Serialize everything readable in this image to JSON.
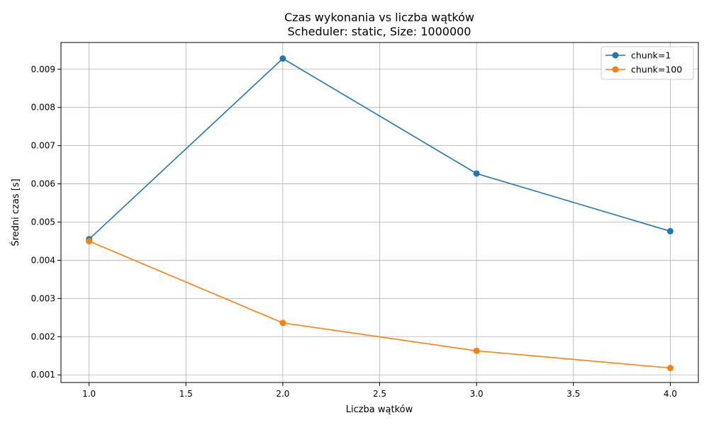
{
  "chart_data": {
    "type": "line",
    "title": "Czas wykonania vs liczba wątków",
    "subtitle": "Scheduler: static, Size: 1000000",
    "xlabel": "Liczba wątków",
    "ylabel": "Średni czas [s]",
    "xlim": [
      0.855,
      4.145
    ],
    "ylim": [
      0.0008,
      0.0097
    ],
    "xticks": [
      1.0,
      1.5,
      2.0,
      2.5,
      3.0,
      3.5,
      4.0
    ],
    "xtick_labels": [
      "1.0",
      "1.5",
      "2.0",
      "2.5",
      "3.0",
      "3.5",
      "4.0"
    ],
    "yticks": [
      0.001,
      0.002,
      0.003,
      0.004,
      0.005,
      0.006,
      0.007,
      0.008,
      0.009
    ],
    "ytick_labels": [
      "0.001",
      "0.002",
      "0.003",
      "0.004",
      "0.005",
      "0.006",
      "0.007",
      "0.008",
      "0.009"
    ],
    "grid": true,
    "legend_position": "top-right",
    "x": [
      1.0,
      2.0,
      3.0,
      4.0
    ],
    "series": [
      {
        "name": "chunk=1",
        "color": "#1f77b4",
        "values": [
          0.00455,
          0.00928,
          0.00627,
          0.00476
        ]
      },
      {
        "name": "chunk=100",
        "color": "#ff7f0e",
        "values": [
          0.0045,
          0.00236,
          0.00163,
          0.00118
        ]
      }
    ]
  }
}
